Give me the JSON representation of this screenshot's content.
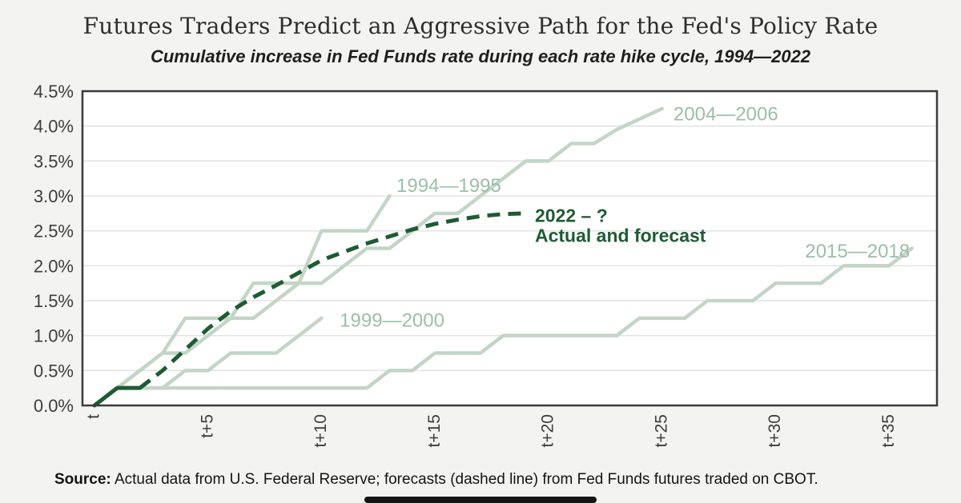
{
  "chart_data": {
    "type": "line",
    "title": "Futures Traders Predict an Aggressive Path for the Fed's Policy Rate",
    "subtitle": "Cumulative increase in Fed Funds rate during each rate hike cycle, 1994—2022",
    "x_unit": "months after first rate hike (t)",
    "x_ticks": [
      {
        "label": "t",
        "month": 0
      },
      {
        "label": "t+5",
        "month": 5
      },
      {
        "label": "t+10",
        "month": 10
      },
      {
        "label": "t+15",
        "month": 15
      },
      {
        "label": "t+20",
        "month": 20
      },
      {
        "label": "t+25",
        "month": 25
      },
      {
        "label": "t+30",
        "month": 30
      },
      {
        "label": "t+35",
        "month": 35
      }
    ],
    "y_ticks": [
      {
        "label": "4.5%",
        "value": 4.5
      },
      {
        "label": "4.0%",
        "value": 4.0
      },
      {
        "label": "3.5%",
        "value": 3.5
      },
      {
        "label": "3.0%",
        "value": 3.0
      },
      {
        "label": "2.5%",
        "value": 2.5
      },
      {
        "label": "2.0%",
        "value": 2.0
      },
      {
        "label": "1.5%",
        "value": 1.5
      },
      {
        "label": "1.0%",
        "value": 1.0
      },
      {
        "label": "0.5%",
        "value": 0.5
      },
      {
        "label": "0.0%",
        "value": 0.0
      }
    ],
    "ylim": [
      0,
      4.5
    ],
    "xlim_months": [
      0,
      37
    ],
    "grid": "horizontal-only",
    "legend": "inline-labels",
    "series": [
      {
        "name": "1994—1995",
        "style": "solid",
        "color_key": "light",
        "start_month": 0,
        "month_step": 1,
        "values": [
          0,
          0.25,
          0.5,
          0.75,
          1.25,
          1.25,
          1.25,
          1.75,
          1.75,
          1.75,
          2.5,
          2.5,
          2.5,
          3.0
        ],
        "label": {
          "lines": [
            "1994—1995"
          ],
          "month": 13.3,
          "value": 3.06,
          "bold": false
        }
      },
      {
        "name": "1999—2000",
        "style": "solid",
        "color_key": "light",
        "start_month": 0,
        "month_step": 1,
        "values": [
          0,
          0.25,
          0.25,
          0.25,
          0.5,
          0.5,
          0.75,
          0.75,
          0.75,
          1.0,
          1.25
        ],
        "label": {
          "lines": [
            "1999—2000"
          ],
          "month": 10.8,
          "value": 1.13,
          "bold": false
        }
      },
      {
        "name": "2004—2006",
        "style": "solid",
        "color_key": "light",
        "start_month": 0,
        "month_step": 1,
        "values": [
          0,
          0.25,
          0.5,
          0.75,
          0.75,
          1.0,
          1.25,
          1.25,
          1.5,
          1.75,
          1.75,
          2.0,
          2.25,
          2.25,
          2.5,
          2.75,
          2.75,
          3.0,
          3.25,
          3.5,
          3.5,
          3.75,
          3.75,
          3.95,
          4.1,
          4.25
        ],
        "label": {
          "lines": [
            "2004—2006"
          ],
          "month": 25.5,
          "value": 4.08,
          "bold": false
        }
      },
      {
        "name": "2015—2018",
        "style": "solid",
        "color_key": "light",
        "start_month": 0,
        "month_step": 1,
        "values": [
          0,
          0.25,
          0.25,
          0.25,
          0.25,
          0.25,
          0.25,
          0.25,
          0.25,
          0.25,
          0.25,
          0.25,
          0.25,
          0.5,
          0.5,
          0.75,
          0.75,
          0.75,
          1.0,
          1.0,
          1.0,
          1.0,
          1.0,
          1.0,
          1.25,
          1.25,
          1.25,
          1.5,
          1.5,
          1.5,
          1.75,
          1.75,
          1.75,
          2.0,
          2.0,
          2.0,
          2.25
        ],
        "label": {
          "lines": [
            "2015—2018"
          ],
          "month": 31.3,
          "value": 2.12,
          "bold": false
        }
      },
      {
        "name": "2022 – ? Actual and forecast",
        "style": "dashed-after-actual",
        "color_key": "dark",
        "solid_until_month": 2,
        "start_month": 0,
        "month_step": 1,
        "values": [
          0,
          0.25,
          0.25,
          0.5,
          0.8,
          1.1,
          1.35,
          1.55,
          1.72,
          1.9,
          2.08,
          2.2,
          2.32,
          2.42,
          2.52,
          2.6,
          2.66,
          2.71,
          2.74,
          2.75
        ],
        "label": {
          "lines": [
            "2022 – ?",
            "Actual and forecast"
          ],
          "month": 19.4,
          "value": 2.63,
          "bold": true
        }
      }
    ],
    "colors": {
      "light": "#c3d5c7",
      "light_label": "#9bbfa9",
      "dark": "#1e5b33",
      "grid": "#e3e3e3",
      "frame": "#3b3b3b",
      "plot_bg": "#ffffff",
      "page_bg": "#f3f3f2",
      "tick_text": "#3d3d3d"
    }
  },
  "source": {
    "label": "Source:",
    "text": " Actual data from U.S. Federal Reserve; forecasts (dashed line) from Fed Funds futures traded on CBOT."
  }
}
